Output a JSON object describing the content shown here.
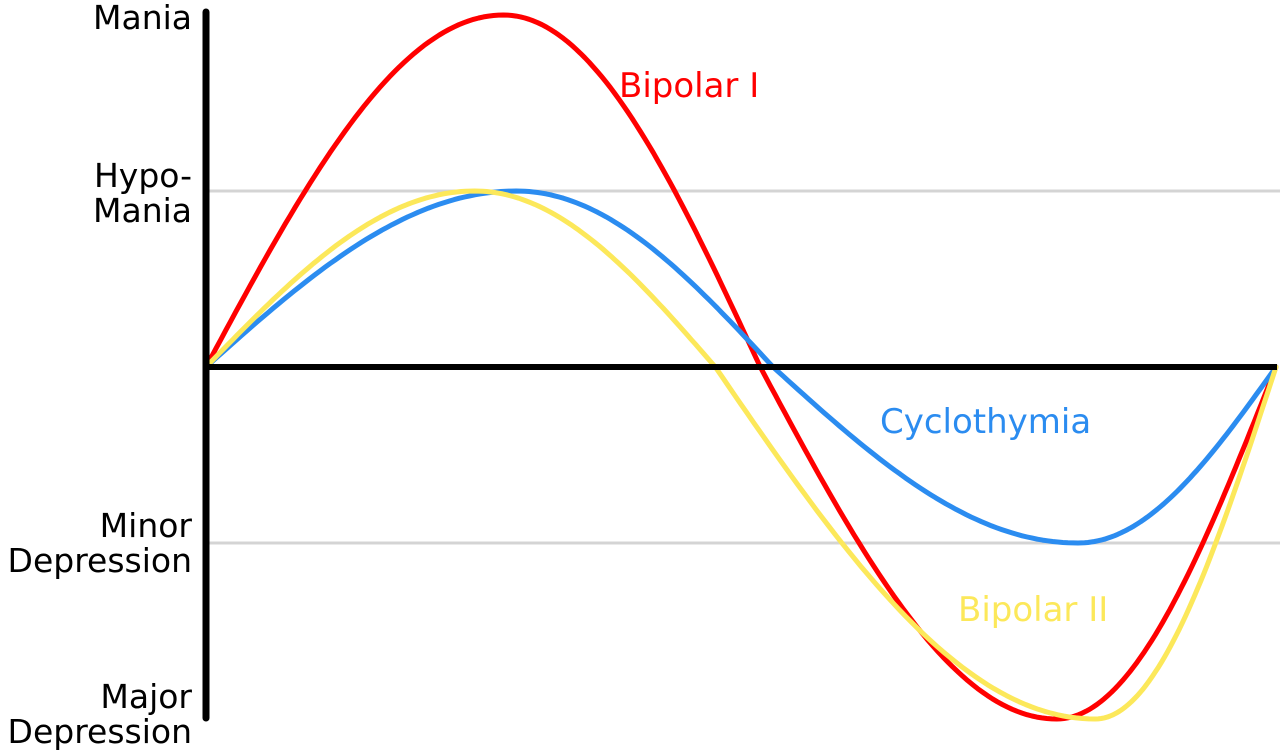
{
  "chart_data": {
    "type": "line",
    "title": "",
    "xlabel": "",
    "ylabel": "",
    "y_levels": [
      {
        "value": 2,
        "label": "Mania"
      },
      {
        "value": 1,
        "label": "Hypo-\nMania"
      },
      {
        "value": -1,
        "label": "Minor\nDepression"
      },
      {
        "value": -2,
        "label": "Major\nDepression"
      }
    ],
    "gridlines": [
      1,
      -1
    ],
    "xlim": [
      0,
      1
    ],
    "ylim": [
      -2,
      2
    ],
    "series": [
      {
        "name": "Bipolar I",
        "color": "#ff0000",
        "points": [
          [
            0,
            0
          ],
          [
            0.278,
            2
          ],
          [
            0.518,
            0
          ],
          [
            0.795,
            -2
          ],
          [
            1,
            0
          ]
        ]
      },
      {
        "name": "Cyclothymia",
        "color": "#2b8cf0",
        "points": [
          [
            0,
            0
          ],
          [
            0.29,
            1
          ],
          [
            0.53,
            0
          ],
          [
            0.815,
            -1
          ],
          [
            1,
            0
          ]
        ]
      },
      {
        "name": "Bipolar II",
        "color": "#fce85a",
        "points": [
          [
            0,
            0
          ],
          [
            0.251,
            1
          ],
          [
            0.476,
            0
          ],
          [
            0.831,
            -2
          ],
          [
            1,
            0
          ]
        ]
      }
    ]
  }
}
